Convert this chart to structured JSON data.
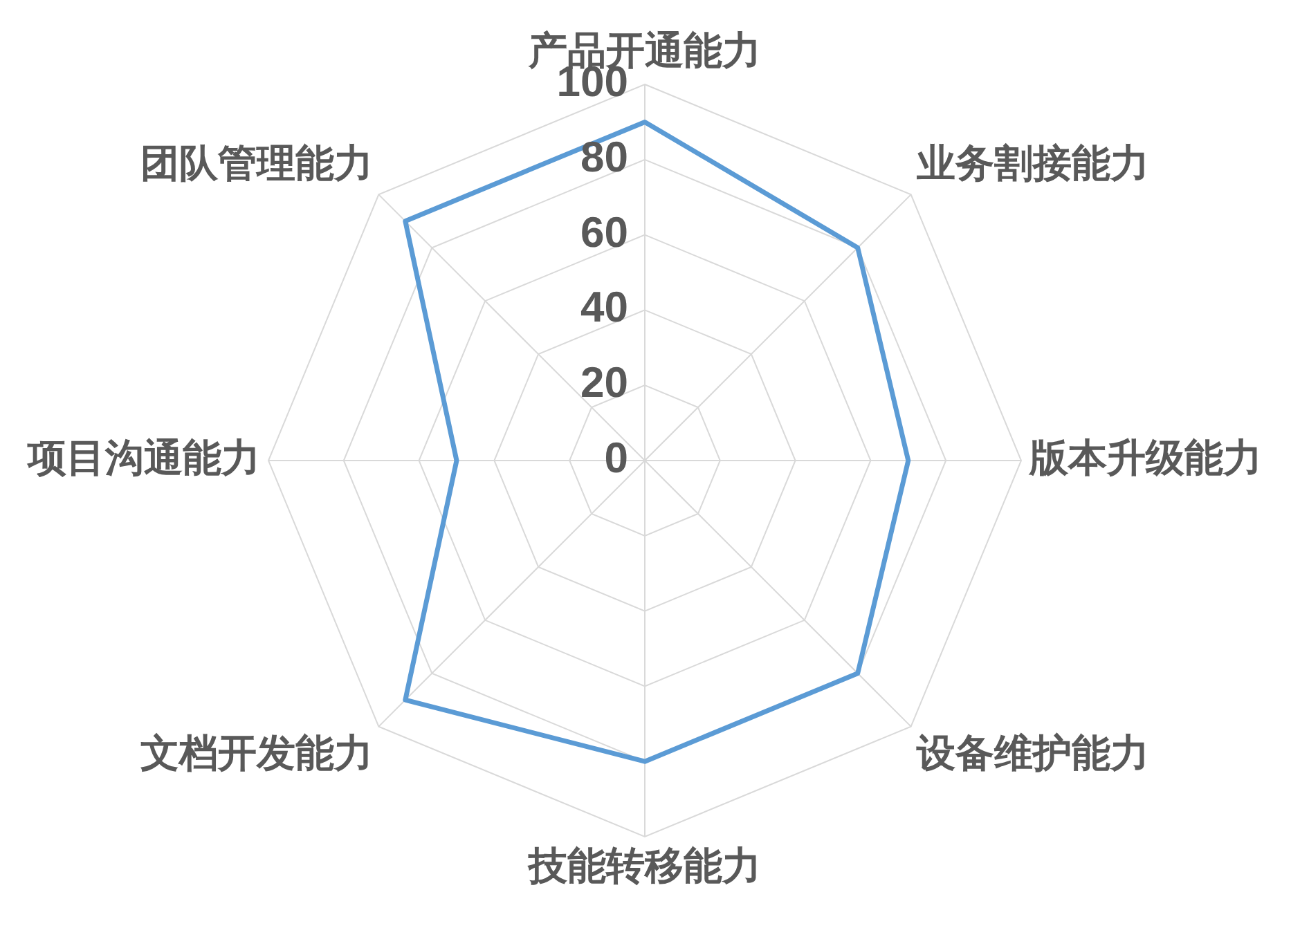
{
  "chart_data": {
    "type": "radar",
    "categories": [
      "产品开通能力",
      "业务割接能力",
      "版本升级能力",
      "设备维护能力",
      "技能转移能力",
      "文档开发能力",
      "项目沟通能力",
      "团队管理能力"
    ],
    "series": [
      {
        "color": "#5b9bd5",
        "values": [
          90,
          80,
          70,
          80,
          80,
          90,
          50,
          90
        ]
      }
    ],
    "ylim": [
      0,
      100
    ],
    "yticks": [
      0,
      20,
      40,
      60,
      80,
      100
    ],
    "grid": true,
    "marker": "none",
    "line_style": "solid"
  }
}
